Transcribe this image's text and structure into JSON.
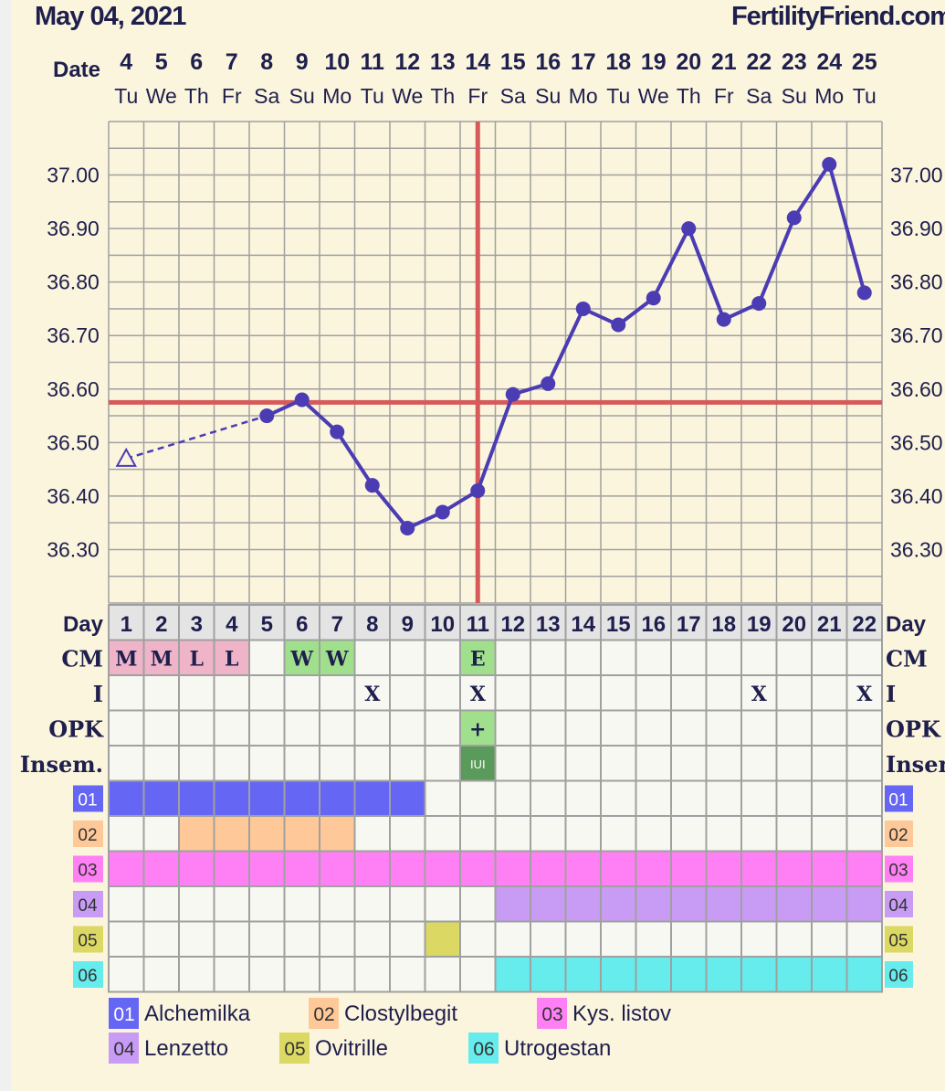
{
  "header": {
    "title": "May 04, 2021",
    "brand": "FertilityFriend.com"
  },
  "chart_data": {
    "type": "line",
    "title": "",
    "date_label": "Date",
    "dates": [
      "4",
      "5",
      "6",
      "7",
      "8",
      "9",
      "10",
      "11",
      "12",
      "13",
      "14",
      "15",
      "16",
      "17",
      "18",
      "19",
      "20",
      "21",
      "22",
      "23",
      "24",
      "25"
    ],
    "weekdays": [
      "Tu",
      "We",
      "Th",
      "Fr",
      "Sa",
      "Su",
      "Mo",
      "Tu",
      "We",
      "Th",
      "Fr",
      "Sa",
      "Su",
      "Mo",
      "Tu",
      "We",
      "Th",
      "Fr",
      "Sa",
      "Su",
      "Mo",
      "Tu"
    ],
    "ylim": [
      36.2,
      37.1
    ],
    "yticks": [
      "37.00",
      "36.90",
      "36.80",
      "36.70",
      "36.60",
      "36.50",
      "36.40",
      "36.30"
    ],
    "grid": true,
    "temperatures": [
      36.47,
      null,
      null,
      null,
      36.55,
      36.58,
      36.52,
      36.42,
      36.34,
      36.37,
      36.41,
      36.59,
      36.61,
      36.75,
      36.72,
      36.77,
      36.9,
      36.73,
      36.76,
      36.92,
      37.02,
      36.78
    ],
    "open_marker_days": [
      1
    ],
    "coverline": 36.575,
    "ovulation_day": 11,
    "line_color": "#4b3cb4",
    "marker_line_color": "#d65a5a"
  },
  "rows": {
    "day_label": "Day",
    "days": [
      "1",
      "2",
      "3",
      "4",
      "5",
      "6",
      "7",
      "8",
      "9",
      "10",
      "11",
      "12",
      "13",
      "14",
      "15",
      "16",
      "17",
      "18",
      "19",
      "20",
      "21",
      "22"
    ],
    "cm_label": "CM",
    "cm": [
      "M",
      "M",
      "L",
      "L",
      "",
      "W",
      "W",
      "",
      "",
      "",
      "E",
      "",
      "",
      "",
      "",
      "",
      "",
      "",
      "",
      "",
      "",
      ""
    ],
    "i_label": "I",
    "intercourse": [
      "",
      "",
      "",
      "",
      "",
      "",
      "",
      "X",
      "",
      "",
      "X",
      "",
      "",
      "",
      "",
      "",
      "",
      "",
      "X",
      "",
      "",
      "X"
    ],
    "opk_label": "OPK",
    "opk": [
      "",
      "",
      "",
      "",
      "",
      "",
      "",
      "",
      "",
      "",
      "+",
      "",
      "",
      "",
      "",
      "",
      "",
      "",
      "",
      "",
      "",
      ""
    ],
    "insem_label": "Insem.",
    "insem": [
      "",
      "",
      "",
      "",
      "",
      "",
      "",
      "",
      "",
      "",
      "IUI",
      "",
      "",
      "",
      "",
      "",
      "",
      "",
      "",
      "",
      "",
      ""
    ]
  },
  "medications": [
    {
      "code": "01",
      "name": "Alchemilka",
      "color": "#6666f5",
      "start": 1,
      "end": 9
    },
    {
      "code": "02",
      "name": "Clostylbegit",
      "color": "#ffc898",
      "start": 3,
      "end": 7
    },
    {
      "code": "03",
      "name": "Kys. listov",
      "color": "#ff80f5",
      "start": 1,
      "end": 22
    },
    {
      "code": "04",
      "name": "Lenzetto",
      "color": "#c89cf5",
      "start": 12,
      "end": 22
    },
    {
      "code": "05",
      "name": "Ovitrille",
      "color": "#dcd864",
      "start": 10,
      "end": 10
    },
    {
      "code": "06",
      "name": "Utrogestan",
      "color": "#66ecec",
      "start": 12,
      "end": 22
    }
  ],
  "colors": {
    "cm_M": "#f0b4c8",
    "cm_L": "#f0b4c8",
    "cm_W": "#a0e08c",
    "cm_E": "#a0e08c",
    "opk_pos": "#a0e08c",
    "iui": "#5a9a5a"
  }
}
